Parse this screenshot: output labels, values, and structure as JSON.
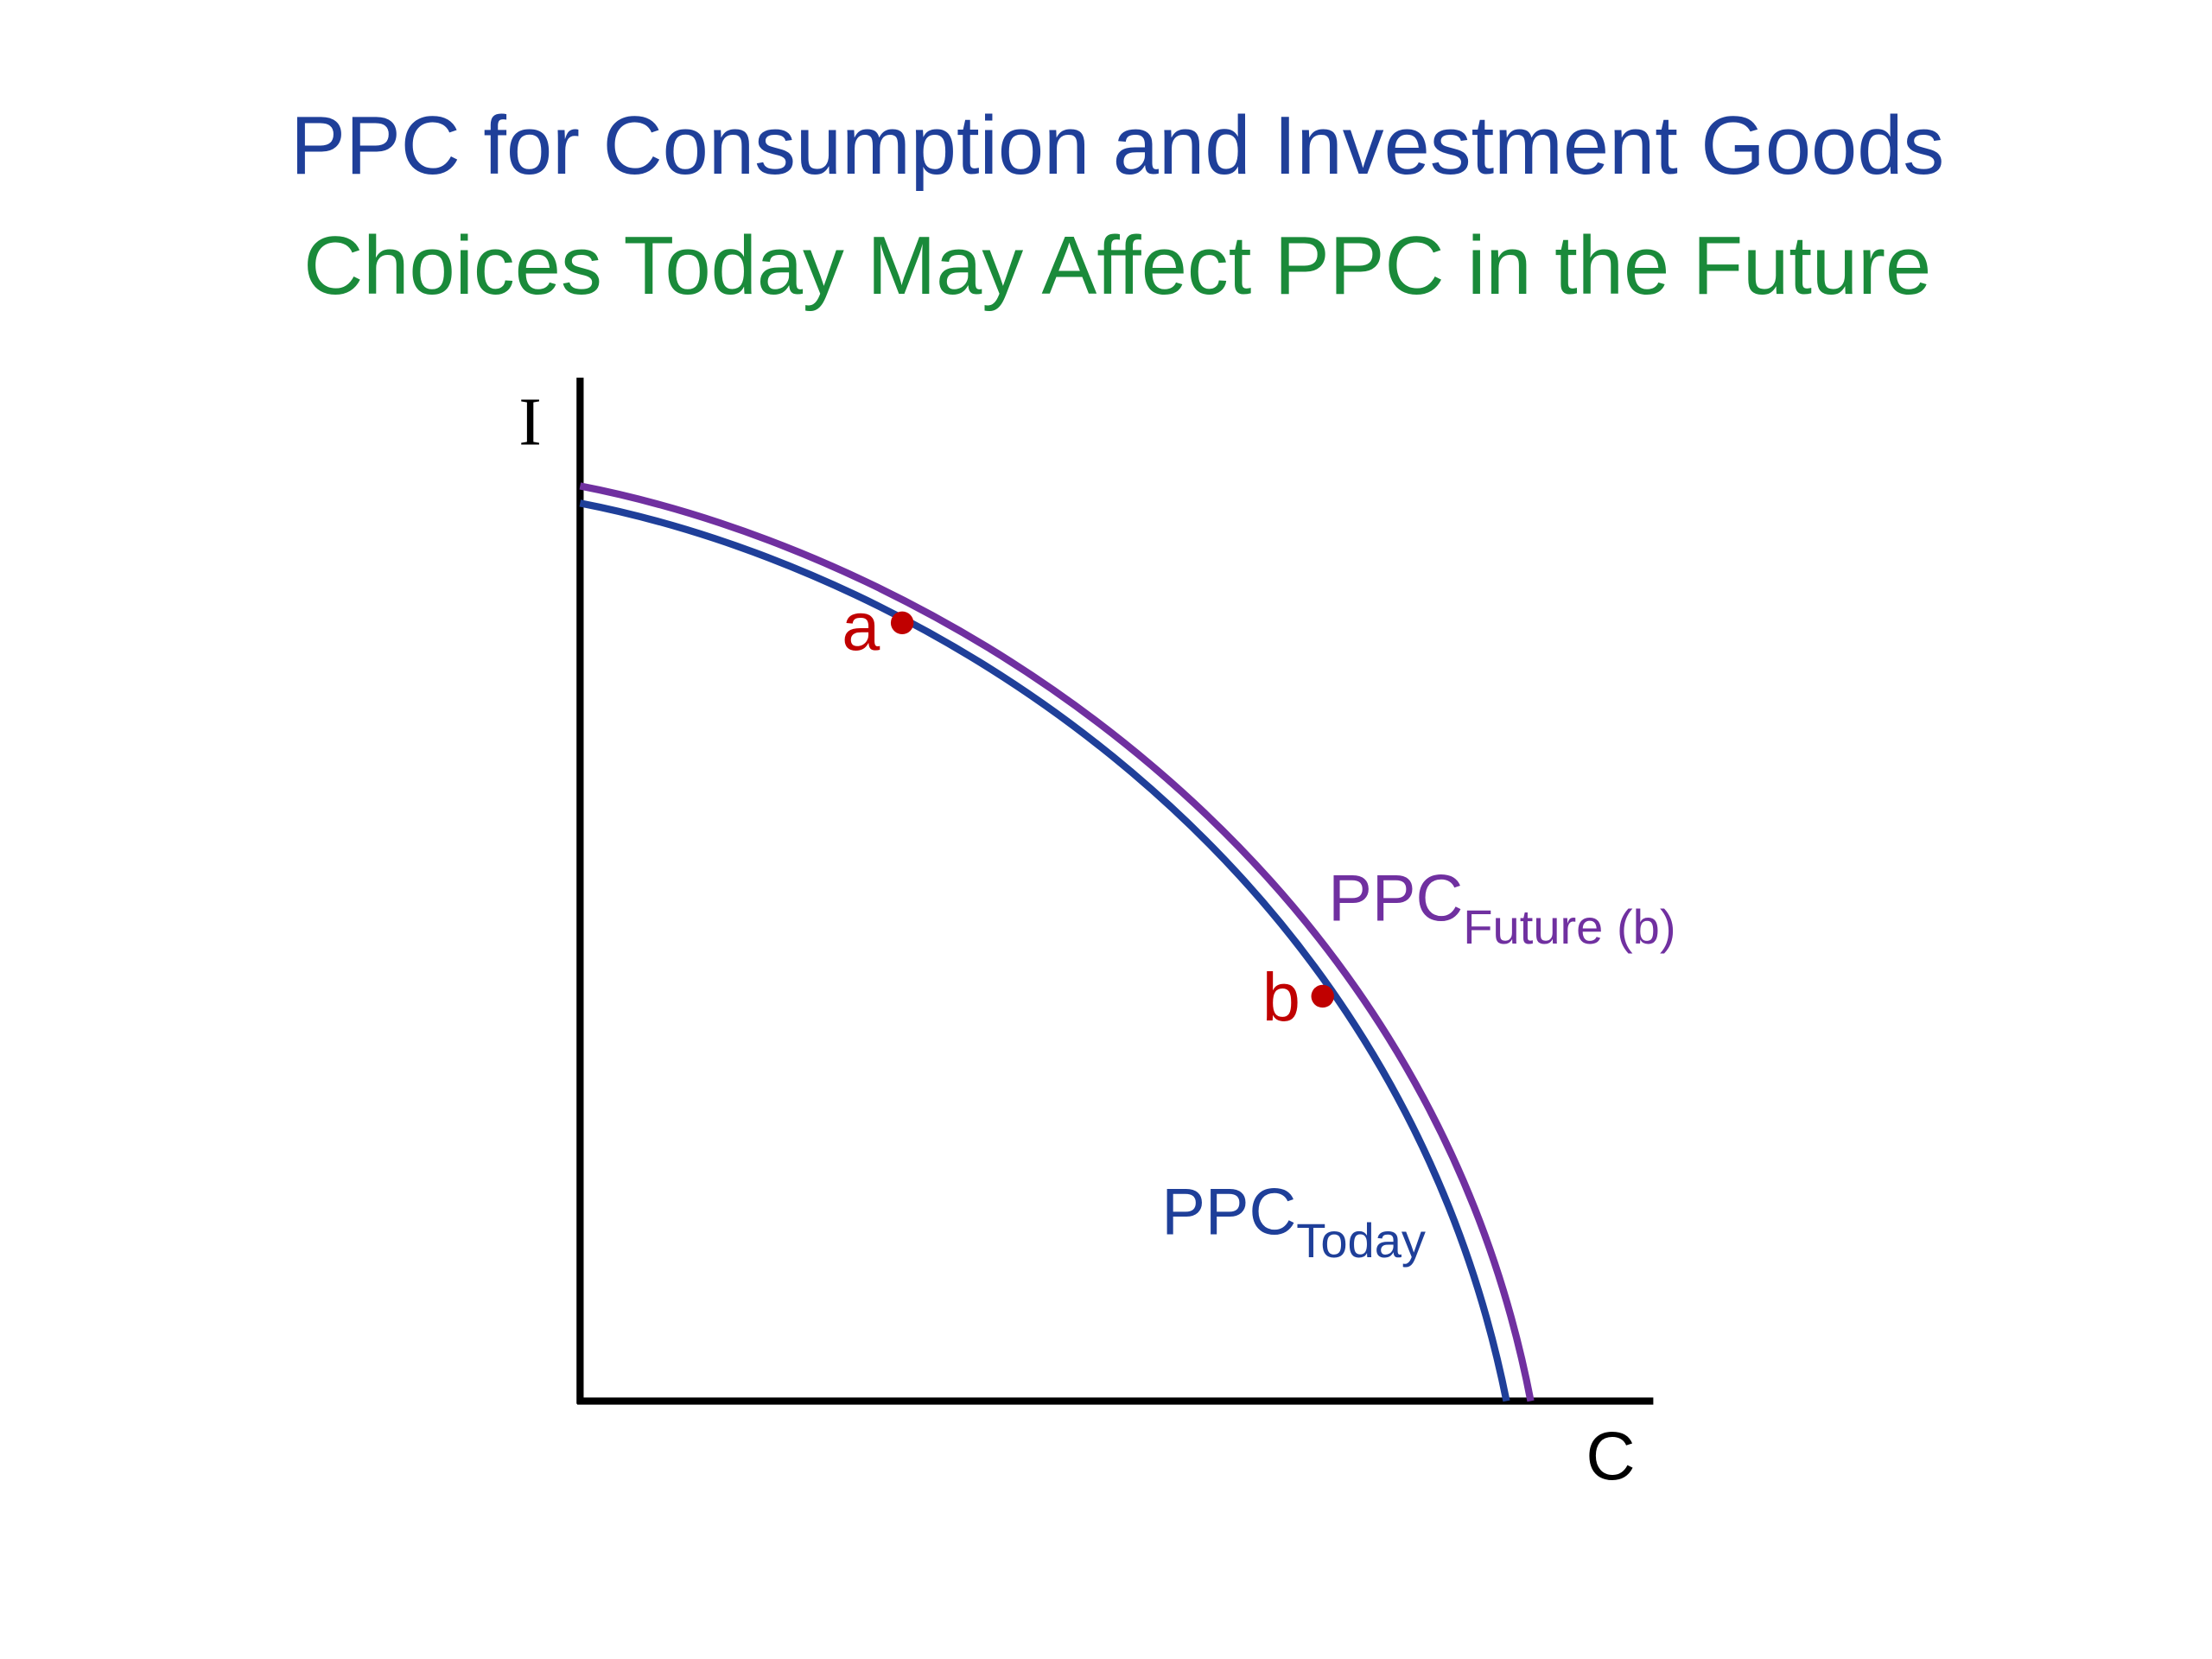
{
  "title": "PPC for Consumption and Investment Goods",
  "subtitle": "Choices Today May Affect PPC in the Future",
  "axes": {
    "y_label": "I",
    "x_label": "C"
  },
  "curves": [
    {
      "label": "PPC",
      "subscript": "Future (b)"
    },
    {
      "label": "PPC",
      "subscript": "Today"
    }
  ],
  "points": [
    {
      "label": "a"
    },
    {
      "label": "b"
    }
  ]
}
